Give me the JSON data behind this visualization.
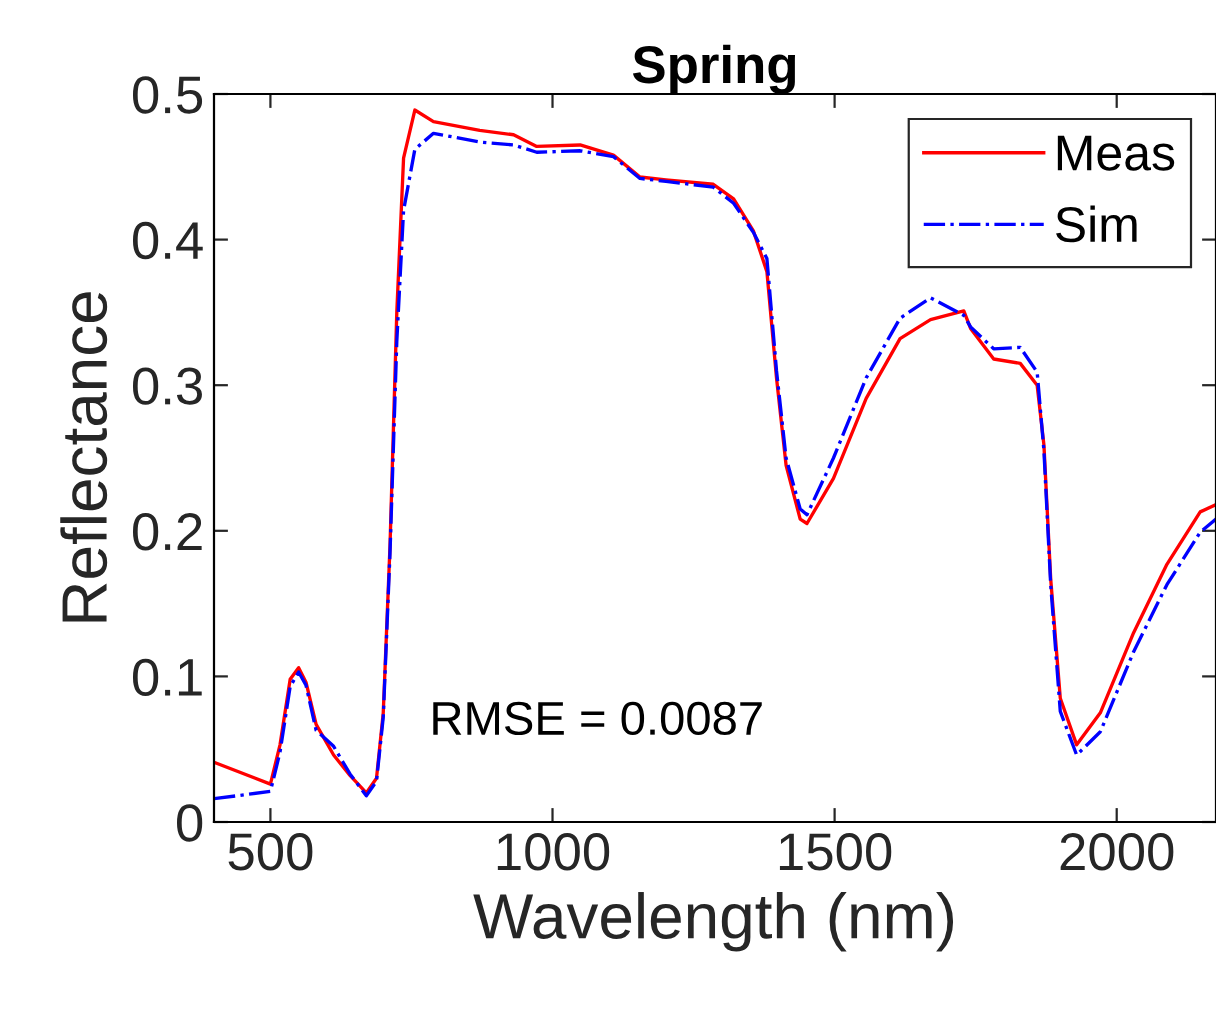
{
  "chart_data": {
    "type": "line",
    "title": "Spring",
    "xlabel": "Wavelength (nm)",
    "ylabel": "Reflectance",
    "x": [
      400,
      500,
      517,
      535,
      550,
      563,
      581,
      612,
      641,
      670,
      688,
      700,
      712,
      724,
      736,
      756,
      789,
      871,
      931,
      972,
      1049,
      1108,
      1155,
      1201,
      1285,
      1321,
      1356,
      1380,
      1397,
      1414,
      1439,
      1451,
      1498,
      1556,
      1616,
      1670,
      1729,
      1741,
      1782,
      1829,
      1859,
      1871,
      1883,
      1900,
      1929,
      1971,
      2030,
      2089,
      2148,
      2176
    ],
    "series": [
      {
        "name": "Meas",
        "color": "#ff0000",
        "line_style": "solid",
        "values": [
          0.041,
          0.026,
          0.053,
          0.098,
          0.106,
          0.096,
          0.067,
          0.046,
          0.032,
          0.02,
          0.03,
          0.075,
          0.19,
          0.35,
          0.456,
          0.489,
          0.481,
          0.475,
          0.472,
          0.464,
          0.465,
          0.458,
          0.443,
          0.441,
          0.438,
          0.428,
          0.406,
          0.378,
          0.305,
          0.245,
          0.208,
          0.205,
          0.236,
          0.291,
          0.332,
          0.345,
          0.351,
          0.339,
          0.318,
          0.315,
          0.3,
          0.259,
          0.167,
          0.085,
          0.053,
          0.075,
          0.13,
          0.177,
          0.213,
          0.218
        ]
      },
      {
        "name": "Sim",
        "color": "#0000ff",
        "line_style": "dashdot",
        "values": [
          0.016,
          0.021,
          0.048,
          0.093,
          0.103,
          0.094,
          0.063,
          0.052,
          0.033,
          0.018,
          0.028,
          0.072,
          0.185,
          0.33,
          0.42,
          0.462,
          0.473,
          0.467,
          0.465,
          0.46,
          0.461,
          0.457,
          0.442,
          0.44,
          0.436,
          0.425,
          0.405,
          0.387,
          0.31,
          0.25,
          0.215,
          0.211,
          0.25,
          0.305,
          0.346,
          0.36,
          0.348,
          0.34,
          0.325,
          0.326,
          0.309,
          0.255,
          0.163,
          0.076,
          0.046,
          0.062,
          0.117,
          0.163,
          0.199,
          0.208
        ]
      }
    ],
    "xlim": [
      400,
      2176
    ],
    "ylim": [
      0,
      0.5
    ],
    "xticks": [
      500,
      1000,
      1500,
      2000
    ],
    "yticks": [
      0,
      0.1,
      0.2,
      0.3,
      0.4,
      0.5
    ],
    "legend": "top right",
    "grid": false,
    "annotations": [
      "RMSE = 0.0087"
    ]
  }
}
